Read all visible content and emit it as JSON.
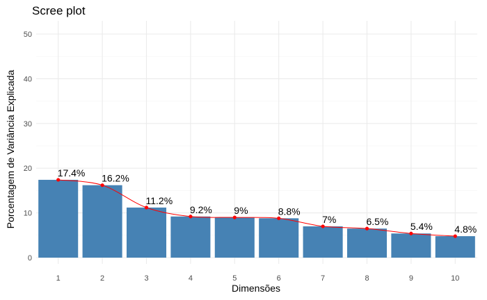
{
  "chart_data": {
    "type": "bar",
    "title": "Scree plot",
    "xlabel": "Dimensões",
    "ylabel": "Porcentagem de Variância Explicada",
    "categories": [
      "1",
      "2",
      "3",
      "4",
      "5",
      "6",
      "7",
      "8",
      "9",
      "10"
    ],
    "values": [
      17.4,
      16.2,
      11.2,
      9.2,
      9.0,
      8.8,
      7.0,
      6.5,
      5.4,
      4.8
    ],
    "data_labels": [
      "17.4%",
      "16.2%",
      "11.2%",
      "9.2%",
      "9%",
      "8.8%",
      "7%",
      "6.5%",
      "5.4%",
      "4.8%"
    ],
    "ylim": [
      0,
      52
    ],
    "yticks": [
      0,
      10,
      20,
      30,
      40,
      50
    ],
    "grid": true,
    "line_overlay": true,
    "colors": {
      "bar": "#4682b4",
      "line": "#ff0000",
      "point": "#ff0000"
    }
  }
}
